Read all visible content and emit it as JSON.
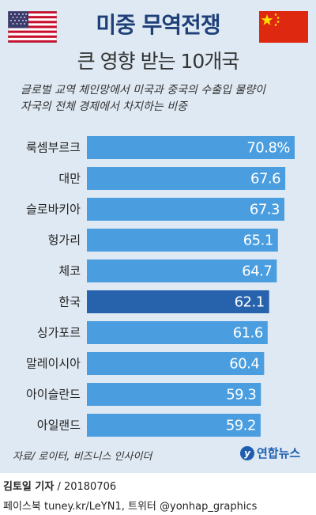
{
  "header": {
    "title": "미중 무역전쟁",
    "subtitle": "큰 영향 받는 10개국",
    "description_line1": "글로벌 교역 체인망에서 미국과 중국의 수출입 물량이",
    "description_line2": "자국의 전체 경제에서 차지하는 비중"
  },
  "flags": {
    "left": "us-flag",
    "right": "china-flag"
  },
  "colors": {
    "bar": "#4a9ee0",
    "highlight": "#2763ad",
    "background": "#dfe9f3",
    "title": "#1f3f78"
  },
  "chart_data": {
    "type": "bar",
    "orientation": "horizontal",
    "categories": [
      "룩셈부르크",
      "대만",
      "슬로바키아",
      "헝가리",
      "체코",
      "한국",
      "싱가포르",
      "말레이시아",
      "아이슬란드",
      "아일랜드"
    ],
    "values": [
      70.8,
      67.6,
      67.3,
      65.1,
      64.7,
      62.1,
      61.6,
      60.4,
      59.3,
      59.2
    ],
    "value_labels": [
      "70.8%",
      "67.6",
      "67.3",
      "65.1",
      "64.7",
      "62.1",
      "61.6",
      "60.4",
      "59.3",
      "59.2"
    ],
    "highlight": "한국",
    "unit": "%"
  },
  "source": "자료/ 로이터, 비즈니스 인사이더",
  "logo_text": "연합뉴스",
  "credit": {
    "author": "김토일 기자",
    "date": " / 20180706"
  },
  "social": "페이스북 tuney.kr/LeYN1, 트위터 @yonhap_graphics"
}
